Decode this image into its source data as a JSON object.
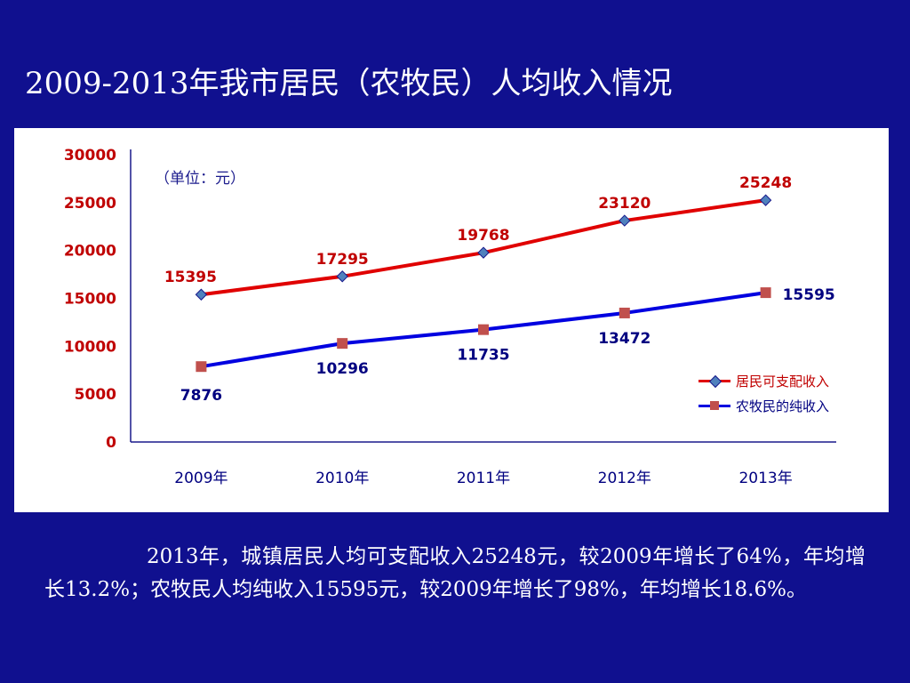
{
  "title": "2009-2013年我市居民（农牧民）人均收入情况",
  "unit_label": "（单位：元）",
  "colors": {
    "background": "#10108f",
    "series1": "#e00000",
    "series2": "#0000e0",
    "marker2": "#c0504d",
    "marker1": "#4f81bd",
    "axis_text": "#c00000",
    "category_text": "#000080"
  },
  "chart_data": {
    "type": "line",
    "categories": [
      "2009年",
      "2010年",
      "2011年",
      "2012年",
      "2013年"
    ],
    "ylim": [
      0,
      30000
    ],
    "yticks": [
      "30000",
      "25000",
      "20000",
      "15000",
      "10000",
      "5000",
      "0"
    ],
    "series": [
      {
        "name": "居民可支配收入",
        "values": [
          15395,
          17295,
          19768,
          23120,
          25248
        ],
        "marker": "diamond"
      },
      {
        "name": "农牧民的纯收入",
        "values": [
          7876,
          10296,
          11735,
          13472,
          15595
        ],
        "marker": "square"
      }
    ],
    "legend_position": "right"
  },
  "summary": "2013年，城镇居民人均可支配收入25248元，较2009年增长了64%，年均增长13.2%；农牧民人均纯收入15595元，较2009年增长了98%，年均增长18.6%。"
}
